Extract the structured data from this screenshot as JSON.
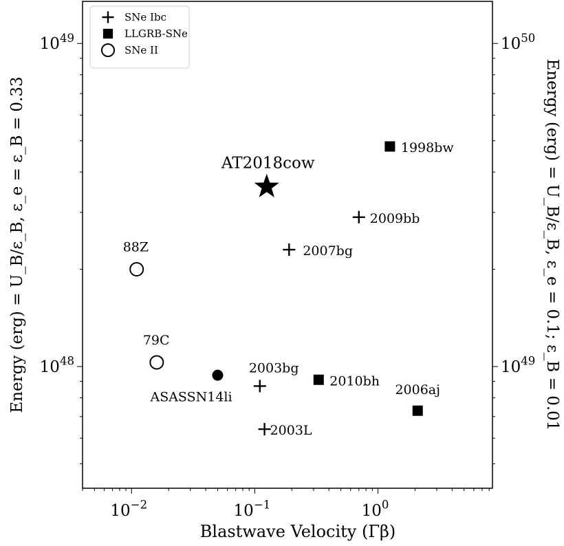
{
  "chart_data": {
    "type": "scatter",
    "xlabel": "Blastwave Velocity (Γβ)",
    "ylabel_left": "Energy (erg) = U_B/ε_B,    ε_e = ε_B = 0.33",
    "ylabel_right": "Energy (erg) = U_B/ε_B,    ε_e = 0.1; ε_B = 0.01",
    "x_scale": "log",
    "y_scale": "log",
    "xlim": [
      0.004,
      8.5
    ],
    "ylim": [
      4.2e+47,
      1.35e+49
    ],
    "right_axis_factor": 10.0,
    "x_ticks": [
      {
        "value": 0.01,
        "base": "10",
        "exp": "−2"
      },
      {
        "value": 0.1,
        "base": "10",
        "exp": "−1"
      },
      {
        "value": 1,
        "base": "10",
        "exp": "0"
      }
    ],
    "y_left_ticks": [
      {
        "value": 1e+48,
        "base": "10",
        "exp": "48"
      },
      {
        "value": 1e+49,
        "base": "10",
        "exp": "49"
      }
    ],
    "y_right_ticks": [
      {
        "value": 1e+49,
        "base": "10",
        "exp": "49"
      },
      {
        "value": 1e+50,
        "base": "10",
        "exp": "50"
      }
    ],
    "legend": {
      "placement": "top-left",
      "entries": [
        {
          "label": "SNe Ibc",
          "marker": "plus"
        },
        {
          "label": "LLGRB-SNe",
          "marker": "square"
        },
        {
          "label": "SNe II",
          "marker": "circle-open"
        }
      ]
    },
    "series": [
      {
        "name": "SNe Ibc",
        "marker": "plus",
        "points": [
          {
            "label": "2009bb",
            "x": 0.7,
            "y": 2.9e+48
          },
          {
            "label": "2007bg",
            "x": 0.19,
            "y": 2.3e+48
          },
          {
            "label": "2003bg",
            "x": 0.11,
            "y": 8.7e+47
          },
          {
            "label": "2003L",
            "x": 0.12,
            "y": 6.4e+47
          }
        ]
      },
      {
        "name": "LLGRB-SNe",
        "marker": "square",
        "points": [
          {
            "label": "1998bw",
            "x": 1.25,
            "y": 4.8e+48
          },
          {
            "label": "2010bh",
            "x": 0.33,
            "y": 9.1e+47
          },
          {
            "label": "2006aj",
            "x": 2.1,
            "y": 7.3e+47
          }
        ]
      },
      {
        "name": "SNe II",
        "marker": "circle-open",
        "points": [
          {
            "label": "88Z",
            "x": 0.011,
            "y": 2e+48
          },
          {
            "label": "79C",
            "x": 0.016,
            "y": 1.03e+48
          }
        ]
      }
    ],
    "extra_points": [
      {
        "label": "AT2018cow",
        "marker": "star",
        "x": 0.125,
        "y": 3.6e+48
      },
      {
        "label": "ASASSN14li",
        "marker": "circle-filled",
        "x": 0.05,
        "y": 9.4e+47
      }
    ]
  }
}
